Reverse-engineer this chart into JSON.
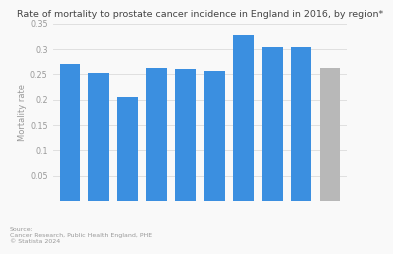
{
  "title": "Rate of mortality to prostate cancer incidence in England in 2016, by region*",
  "ylabel": "Mortality rate",
  "bar_values": [
    0.27,
    0.252,
    0.205,
    0.262,
    0.26,
    0.257,
    0.328,
    0.305,
    0.305,
    0.262
  ],
  "bar_colors": [
    "#3B8FE0",
    "#3B8FE0",
    "#3B8FE0",
    "#3B8FE0",
    "#3B8FE0",
    "#3B8FE0",
    "#3B8FE0",
    "#3B8FE0",
    "#3B8FE0",
    "#B8B8B8"
  ],
  "ylim": [
    0,
    0.35
  ],
  "yticks": [
    0.05,
    0.1,
    0.15,
    0.2,
    0.25,
    0.3,
    0.35
  ],
  "ytick_labels": [
    "0.05",
    "0.1",
    "0.15",
    "0.2",
    "0.25",
    "0.3",
    "0.35"
  ],
  "source_text": "Source:\nCancer Research, Public Health England, PHE\n© Statista 2024",
  "fig_bg": "#f9f9f9",
  "plot_bg": "#f9f9f9",
  "grid_color": "#e0e0e0",
  "title_fontsize": 6.8,
  "ylabel_fontsize": 6.0,
  "tick_fontsize": 5.8,
  "source_fontsize": 4.5
}
